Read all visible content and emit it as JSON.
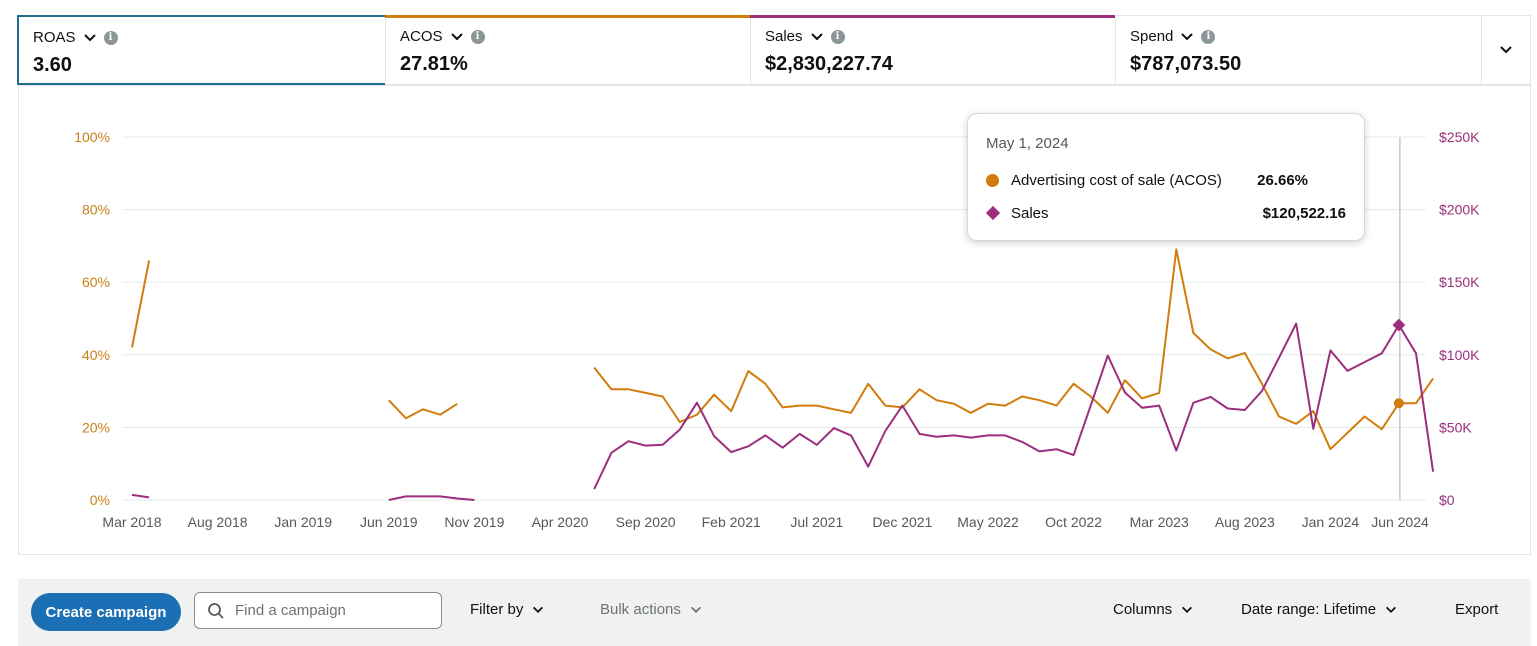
{
  "metrics": [
    {
      "label": "ROAS",
      "value": "3.60",
      "accent": "#1f6c8c"
    },
    {
      "label": "ACOS",
      "value": "27.81%",
      "accent": "#d17c0d"
    },
    {
      "label": "Sales",
      "value": "$2,830,227.74",
      "accent": "#9b2f7d"
    },
    {
      "label": "Spend",
      "value": "$787,073.50",
      "accent": "#e3e6e6"
    }
  ],
  "colors": {
    "acos": "#d17c0d",
    "sales": "#9b2f7d",
    "axis_left": "#c7811b",
    "axis_right": "#9b2f7d"
  },
  "chart_data": {
    "type": "line",
    "left_axis": {
      "ticks": [
        "0%",
        "20%",
        "40%",
        "60%",
        "80%",
        "100%"
      ],
      "range": [
        0,
        100
      ]
    },
    "right_axis": {
      "ticks": [
        "$0",
        "$50K",
        "$100K",
        "$150K",
        "$200K",
        "$250K"
      ],
      "range": [
        0,
        250000
      ]
    },
    "x_tick_labels": [
      "Mar 2018",
      "Aug 2018",
      "Jan 2019",
      "Jun 2019",
      "Nov 2019",
      "Apr 2020",
      "Sep 2020",
      "Feb 2021",
      "Jul 2021",
      "Dec 2021",
      "May 2022",
      "Oct 2022",
      "Mar 2023",
      "Aug 2023",
      "Jan 2024",
      "Jun 2024"
    ],
    "start_month": "2018-03",
    "series": [
      {
        "name": "Advertising cost of sale (ACOS)",
        "axis": "left",
        "unit": "%",
        "segments": [
          {
            "start_index": 0,
            "values": [
              42,
              66
            ]
          },
          {
            "start_index": 15,
            "values": [
              27.5,
              22.5,
              25,
              23.5,
              26.5
            ]
          },
          {
            "start_index": 27,
            "values": [
              36.5,
              30.5,
              30.5,
              29.5,
              28.5,
              21.5,
              23.5,
              29,
              24.5,
              35.5,
              32,
              25.5,
              26,
              26,
              25,
              24,
              32,
              26,
              25.5,
              30.5,
              27.5,
              26.5,
              24,
              26.5,
              26,
              28.5,
              27.5,
              26,
              32,
              28.5,
              24,
              33,
              28,
              29.5,
              69,
              46,
              41.5,
              39,
              40.5,
              32,
              23,
              21,
              24.5,
              14,
              18.5,
              23,
              19.5,
              26.66,
              26.66,
              33.5
            ]
          }
        ]
      },
      {
        "name": "Sales",
        "axis": "right",
        "unit": "$",
        "segments": [
          {
            "start_index": 0,
            "values": [
              3500,
              1800
            ]
          },
          {
            "start_index": 15,
            "values": [
              0,
              2500,
              2500,
              2500,
              1000,
              0
            ]
          },
          {
            "start_index": 27,
            "values": [
              7500,
              32500,
              40500,
              37500,
              38000,
              48500,
              67000,
              44000,
              33000,
              37000,
              44500,
              36000,
              45500,
              38000,
              49500,
              44500,
              23000,
              47500,
              65000,
              45500,
              43500,
              44500,
              43000,
              44500,
              44500,
              40000,
              33500,
              35000,
              31000,
              65000,
              99500,
              74000,
              63500,
              65000,
              34000,
              67000,
              71000,
              63000,
              62000,
              75000,
              98000,
              121500,
              49000,
              103000,
              89000,
              95000,
              101000,
              120522,
              101000,
              19500
            ]
          }
        ]
      }
    ],
    "highlight_index": 74
  },
  "tooltip": {
    "date": "May 1, 2024",
    "rows": [
      {
        "name": "Advertising cost of sale (ACOS)",
        "value": "26.66%"
      },
      {
        "name": "Sales",
        "value": "$120,522.16"
      }
    ]
  },
  "toolbar": {
    "create_label": "Create campaign",
    "search_placeholder": "Find a campaign",
    "filter_label": "Filter by",
    "bulk_label": "Bulk actions",
    "columns_label": "Columns",
    "date_range_label": "Date range: Lifetime",
    "export_label": "Export"
  }
}
